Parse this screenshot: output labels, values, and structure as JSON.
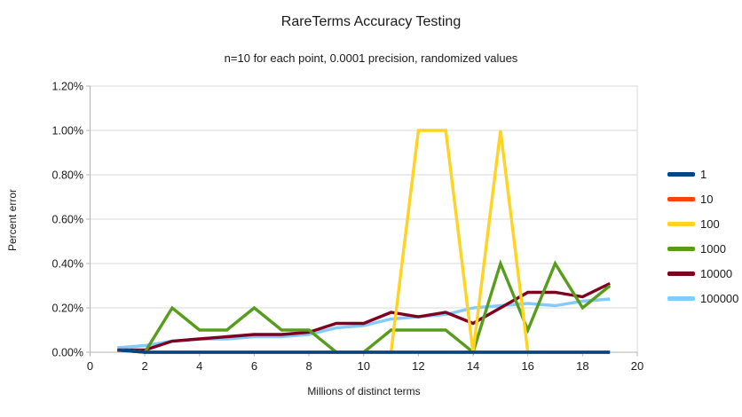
{
  "header": {
    "title": "RareTerms Accuracy Testing",
    "subtitle": "n=10 for each point, 0.0001 precision, randomized values"
  },
  "chart_data": {
    "type": "line",
    "title": "RareTerms Accuracy Testing",
    "subtitle": "n=10 for each point, 0.0001 precision, randomized values",
    "xlabel": "Millions of distinct terms",
    "ylabel": "Percent error",
    "xlim": [
      0,
      20
    ],
    "ylim": [
      0,
      1.2
    ],
    "grid": "horizontal",
    "legend_position": "right",
    "x_ticks": [
      {
        "value": 0,
        "label": "0"
      },
      {
        "value": 2,
        "label": "2"
      },
      {
        "value": 4,
        "label": "4"
      },
      {
        "value": 6,
        "label": "6"
      },
      {
        "value": 8,
        "label": "8"
      },
      {
        "value": 10,
        "label": "10"
      },
      {
        "value": 12,
        "label": "12"
      },
      {
        "value": 14,
        "label": "14"
      },
      {
        "value": 16,
        "label": "16"
      },
      {
        "value": 18,
        "label": "18"
      },
      {
        "value": 20,
        "label": "20"
      }
    ],
    "y_ticks": [
      {
        "value": 0.0,
        "label": "0.00%"
      },
      {
        "value": 0.2,
        "label": "0.20%"
      },
      {
        "value": 0.4,
        "label": "0.40%"
      },
      {
        "value": 0.6,
        "label": "0.60%"
      },
      {
        "value": 0.8,
        "label": "0.80%"
      },
      {
        "value": 1.0,
        "label": "1.00%"
      },
      {
        "value": 1.2,
        "label": "1.20%"
      }
    ],
    "x": [
      1,
      2,
      3,
      4,
      5,
      6,
      7,
      8,
      9,
      10,
      11,
      12,
      13,
      14,
      15,
      16,
      17,
      18,
      19
    ],
    "series": [
      {
        "name": "1",
        "color": "#004586",
        "values": [
          0.01,
          0,
          0,
          0,
          0,
          0,
          0,
          0,
          0,
          0,
          0,
          0,
          0,
          0,
          0,
          0,
          0,
          0,
          0
        ]
      },
      {
        "name": "10",
        "color": "#FF420E",
        "values": [
          0.01,
          0,
          0,
          0,
          0,
          0,
          0,
          0,
          0,
          0,
          0,
          0,
          0,
          0,
          0,
          0,
          0,
          0,
          0
        ]
      },
      {
        "name": "100",
        "color": "#FFD320",
        "values": [
          0.01,
          0,
          0,
          0,
          0,
          0,
          0,
          0,
          0,
          0,
          0,
          1.0,
          1.0,
          0,
          1.0,
          0,
          0,
          0,
          0
        ]
      },
      {
        "name": "1000",
        "color": "#579D1C",
        "values": [
          0.01,
          0,
          0.2,
          0.1,
          0.1,
          0.2,
          0.1,
          0.1,
          0,
          0,
          0.1,
          0.1,
          0.1,
          0,
          0.4,
          0.1,
          0.4,
          0.2,
          0.3
        ]
      },
      {
        "name": "10000",
        "color": "#7E0021",
        "values": [
          0.01,
          0.01,
          0.05,
          0.06,
          0.07,
          0.08,
          0.08,
          0.09,
          0.13,
          0.13,
          0.18,
          0.16,
          0.18,
          0.13,
          0.2,
          0.27,
          0.27,
          0.25,
          0.31
        ]
      },
      {
        "name": "100000",
        "color": "#83CAFF",
        "values": [
          0.02,
          0.03,
          0.05,
          0.06,
          0.06,
          0.07,
          0.07,
          0.08,
          0.11,
          0.12,
          0.15,
          0.16,
          0.17,
          0.2,
          0.21,
          0.22,
          0.21,
          0.23,
          0.24
        ]
      }
    ]
  },
  "colors": {
    "background": "#ffffff",
    "grid": "#d9d9d9",
    "axis": "#b3b3b3",
    "text": "#1a1a1a"
  }
}
